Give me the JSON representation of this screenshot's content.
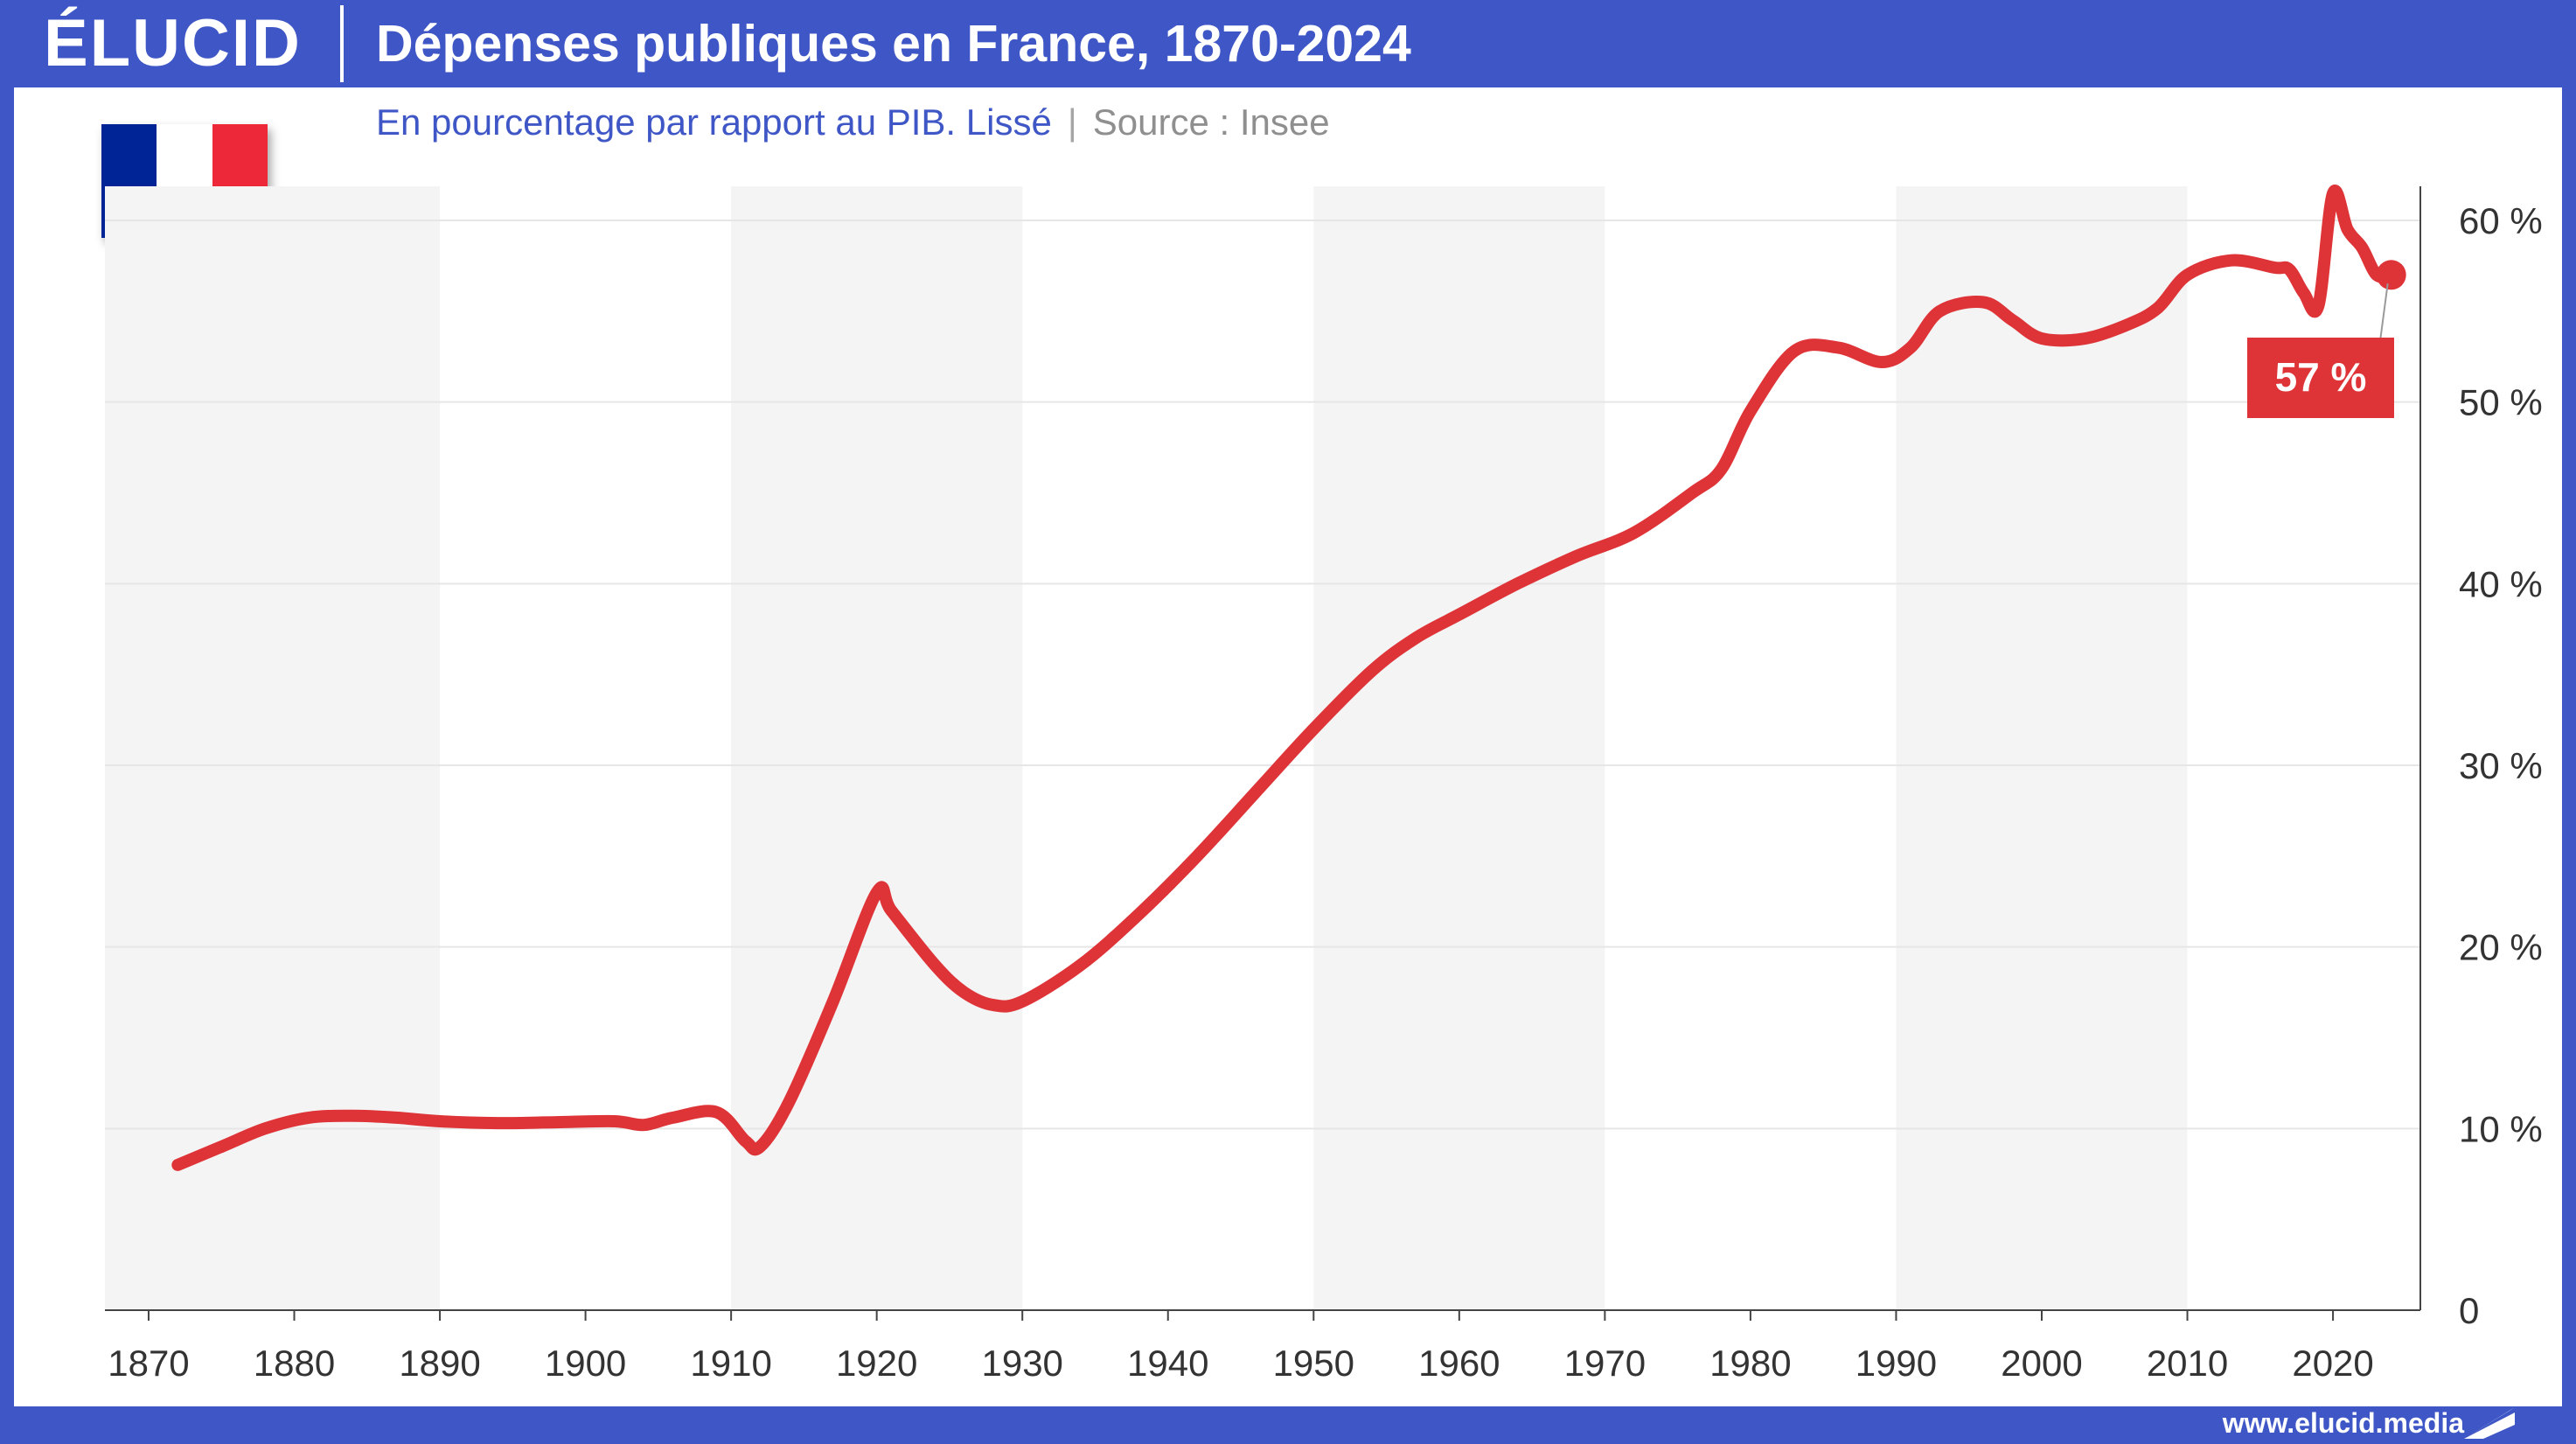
{
  "brand": {
    "logo_text": "ÉLUCID",
    "website": "www.elucid.media"
  },
  "header": {
    "title": "Dépenses publiques en France, 1870-2024"
  },
  "subtitle": {
    "description": "En pourcentage par rapport au PIB. Lissé",
    "separator": "|",
    "source": "Source : Insee"
  },
  "colors": {
    "brand_blue": "#3f57c6",
    "line_red": "#de3438",
    "band_gray": "#f4f4f4"
  },
  "flag": {
    "icon": "france-flag-icon"
  },
  "chart_data": {
    "type": "line",
    "title": "Dépenses publiques en France, 1870-2024",
    "xlabel": "",
    "ylabel": "",
    "xlim": [
      1867,
      2026
    ],
    "ylim": [
      0,
      60
    ],
    "x_ticks": [
      1870,
      1880,
      1890,
      1900,
      1910,
      1920,
      1930,
      1940,
      1950,
      1960,
      1970,
      1980,
      1990,
      2000,
      2010,
      2020
    ],
    "y_ticks": [
      {
        "value": 0,
        "label": "0"
      },
      {
        "value": 10,
        "label": "10 %"
      },
      {
        "value": 20,
        "label": "20 %"
      },
      {
        "value": 30,
        "label": "30 %"
      },
      {
        "value": 40,
        "label": "40 %"
      },
      {
        "value": 50,
        "label": "50 %"
      },
      {
        "value": 60,
        "label": "60 %"
      }
    ],
    "grid": "horizontal",
    "shaded_bands": [
      [
        1867,
        1890
      ],
      [
        1910,
        1930
      ],
      [
        1950,
        1970
      ],
      [
        1990,
        2010
      ]
    ],
    "series": [
      {
        "points": [
          [
            1872,
            8.0
          ],
          [
            1875,
            9.0
          ],
          [
            1878,
            10.0
          ],
          [
            1881,
            10.6
          ],
          [
            1884,
            10.7
          ],
          [
            1887,
            10.6
          ],
          [
            1890,
            10.4
          ],
          [
            1894,
            10.3
          ],
          [
            1898,
            10.35
          ],
          [
            1902,
            10.4
          ],
          [
            1904,
            10.2
          ],
          [
            1906,
            10.6
          ],
          [
            1909,
            10.9
          ],
          [
            1911,
            9.3
          ],
          [
            1912,
            9.0
          ],
          [
            1914,
            11.5
          ],
          [
            1917,
            17.0
          ],
          [
            1920,
            23.0
          ],
          [
            1921,
            22.0
          ],
          [
            1924,
            19.0
          ],
          [
            1926,
            17.5
          ],
          [
            1928,
            16.8
          ],
          [
            1930,
            17.0
          ],
          [
            1934,
            19.0
          ],
          [
            1938,
            21.8
          ],
          [
            1942,
            25.0
          ],
          [
            1946,
            28.5
          ],
          [
            1950,
            32.0
          ],
          [
            1954,
            35.2
          ],
          [
            1957,
            37.0
          ],
          [
            1960,
            38.3
          ],
          [
            1964,
            40.0
          ],
          [
            1968,
            41.5
          ],
          [
            1972,
            42.8
          ],
          [
            1976,
            45.0
          ],
          [
            1978,
            46.3
          ],
          [
            1980,
            49.5
          ],
          [
            1983,
            52.8
          ],
          [
            1986,
            53.0
          ],
          [
            1989,
            52.2
          ],
          [
            1991,
            53.0
          ],
          [
            1993,
            55.0
          ],
          [
            1996,
            55.5
          ],
          [
            1998,
            54.5
          ],
          [
            2000,
            53.5
          ],
          [
            2003,
            53.5
          ],
          [
            2006,
            54.3
          ],
          [
            2008,
            55.2
          ],
          [
            2010,
            57.0
          ],
          [
            2013,
            57.8
          ],
          [
            2016,
            57.4
          ],
          [
            2017,
            57.3
          ],
          [
            2018,
            56.0
          ],
          [
            2019,
            55.3
          ],
          [
            2020,
            61.5
          ],
          [
            2021,
            59.5
          ],
          [
            2022,
            58.5
          ],
          [
            2023,
            57.0
          ],
          [
            2024,
            57.0
          ]
        ]
      }
    ],
    "last_value_label": "57 %",
    "x_tick_prefix_note": ""
  }
}
